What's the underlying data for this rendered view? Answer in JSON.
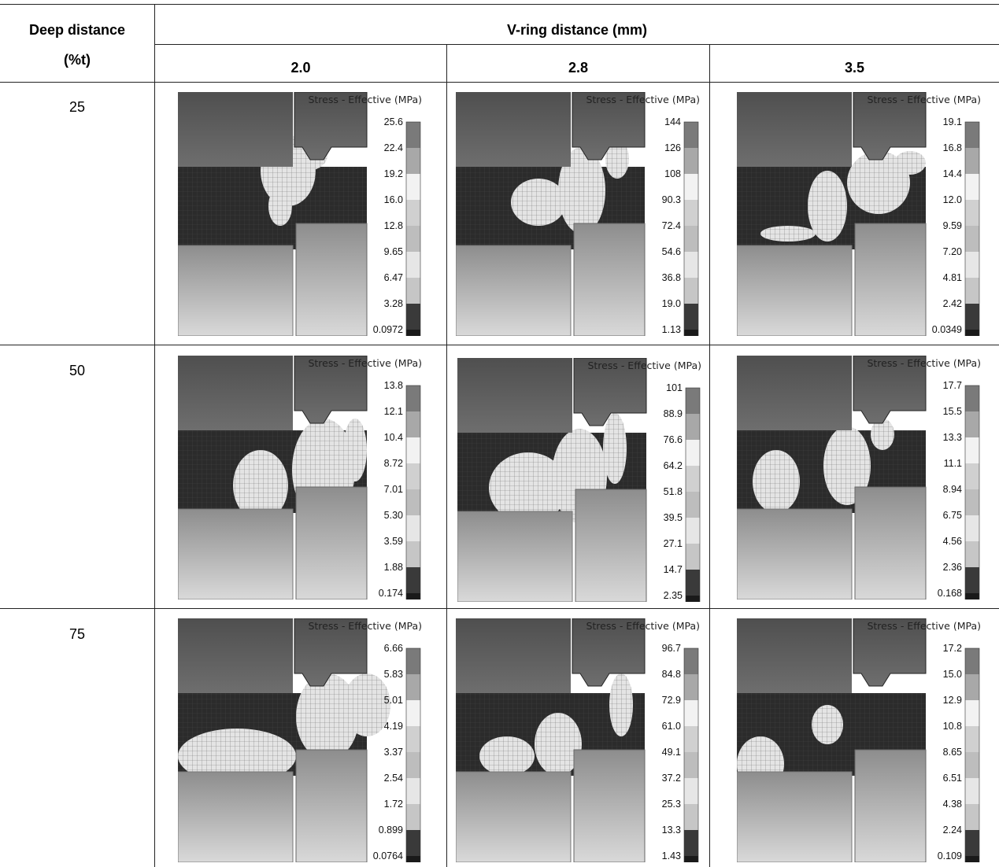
{
  "table": {
    "col_header_1_line1": "Deep distance",
    "col_header_1_line2": "(%t)",
    "group_header": "V-ring distance (mm)",
    "columns": [
      "2.0",
      "2.8",
      "3.5"
    ],
    "rows": [
      "25",
      "50",
      "75"
    ]
  },
  "legend_title": "Stress - Effective (MPa)",
  "legend_colors": [
    "#7a7a7a",
    "#a8a8a8",
    "#f2f2f2",
    "#d0d0d0",
    "#bdbdbd",
    "#e6e6e6",
    "#c6c6c6",
    "#3a3a3a",
    "#1a1a1a"
  ],
  "panels": [
    {
      "row": "25",
      "col": "2.0",
      "scale": [
        "25.6",
        "22.4",
        "19.2",
        "16.0",
        "12.8",
        "9.65",
        "6.47",
        "3.28",
        "0.0972"
      ]
    },
    {
      "row": "25",
      "col": "2.8",
      "scale": [
        "144",
        "126",
        "108",
        "90.3",
        "72.4",
        "54.6",
        "36.8",
        "19.0",
        "1.13"
      ]
    },
    {
      "row": "25",
      "col": "3.5",
      "scale": [
        "19.1",
        "16.8",
        "14.4",
        "12.0",
        "9.59",
        "7.20",
        "4.81",
        "2.42",
        "0.0349"
      ]
    },
    {
      "row": "50",
      "col": "2.0",
      "scale": [
        "13.8",
        "12.1",
        "10.4",
        "8.72",
        "7.01",
        "5.30",
        "3.59",
        "1.88",
        "0.174"
      ]
    },
    {
      "row": "50",
      "col": "2.8",
      "scale": [
        "101",
        "88.9",
        "76.6",
        "64.2",
        "51.8",
        "39.5",
        "27.1",
        "14.7",
        "2.35"
      ]
    },
    {
      "row": "50",
      "col": "3.5",
      "scale": [
        "17.7",
        "15.5",
        "13.3",
        "11.1",
        "8.94",
        "6.75",
        "4.56",
        "2.36",
        "0.168"
      ]
    },
    {
      "row": "75",
      "col": "2.0",
      "scale": [
        "6.66",
        "5.83",
        "5.01",
        "4.19",
        "3.37",
        "2.54",
        "1.72",
        "0.899",
        "0.0764"
      ]
    },
    {
      "row": "75",
      "col": "2.8",
      "scale": [
        "96.7",
        "84.8",
        "72.9",
        "61.0",
        "49.1",
        "37.2",
        "25.3",
        "13.3",
        "1.43"
      ]
    },
    {
      "row": "75",
      "col": "3.5",
      "scale": [
        "17.2",
        "15.0",
        "12.9",
        "10.8",
        "8.65",
        "6.51",
        "4.38",
        "2.24",
        "0.109"
      ]
    }
  ]
}
